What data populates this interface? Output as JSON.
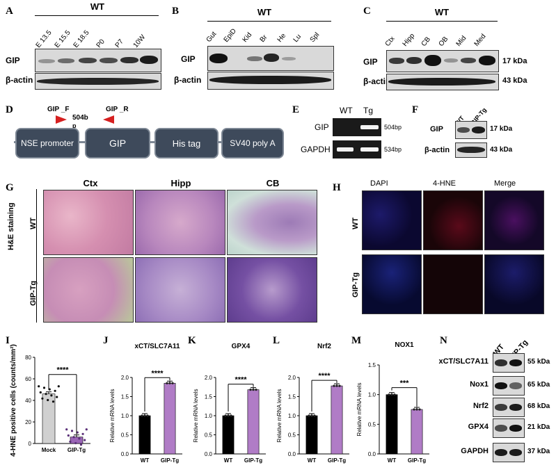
{
  "panel_labels": {
    "A": "A",
    "B": "B",
    "C": "C",
    "D": "D",
    "E": "E",
    "F": "F",
    "G": "G",
    "H": "H",
    "I": "I",
    "J": "J",
    "K": "K",
    "L": "L",
    "M": "M",
    "N": "N"
  },
  "wt": "WT",
  "row_gip": "GIP",
  "row_actin": "β-actin",
  "panelA": {
    "lanes": [
      "E 13.5",
      "E 15.5",
      "E 18.5",
      "P0",
      "P7",
      "10W"
    ]
  },
  "panelB": {
    "lanes": [
      "Gut",
      "EpiD",
      "Kid",
      "Br",
      "He",
      "Lu",
      "Spl"
    ]
  },
  "panelC": {
    "lanes": [
      "Ctx",
      "Hipp",
      "CB",
      "OB",
      "Mid",
      "Med"
    ],
    "kda_gip": "17 kDa",
    "kda_actin": "43 kDa"
  },
  "panelD": {
    "gip_f": "GIP _F",
    "gip_r": "GIP _R",
    "size": "504b",
    "size_p": "p",
    "boxes": [
      "NSE promoter",
      "GIP",
      "His tag",
      "SV40 poly A"
    ]
  },
  "panelE": {
    "col_wt": "WT",
    "col_tg": "Tg",
    "row_gip": "GIP",
    "row_gapdh": "GAPDH",
    "size_gip": "504bp",
    "size_gapdh": "534bp"
  },
  "panelF": {
    "col_wt": "WT",
    "col_tg": "GIP-Tg",
    "row_gip": "GIP",
    "row_actin": "β-actin",
    "kda_gip": "17 kDa",
    "kda_actin": "43 kDa"
  },
  "panelG": {
    "cols": [
      "Ctx",
      "Hipp",
      "CB"
    ],
    "rows": [
      "WT",
      "GIP-Tg"
    ],
    "side": "H&E staining"
  },
  "panelH": {
    "cols": [
      "DAPI",
      "4-HNE",
      "Merge"
    ],
    "rows": [
      "WT",
      "GIP-Tg"
    ]
  },
  "panelN": {
    "col_wt": "WT",
    "col_tg": "GIP-Tg",
    "rows": [
      {
        "name": "xCT/SLC7A11",
        "kda": "55 kDa"
      },
      {
        "name": "Nox1",
        "kda": "65 kDa"
      },
      {
        "name": "Nrf2",
        "kda": "68 kDa"
      },
      {
        "name": "GPX4",
        "kda": "21 kDa"
      },
      {
        "name": "GAPDH",
        "kda": "37 kDa"
      }
    ]
  },
  "colors": {
    "black_bar": "#000000",
    "purple_bar": "#b07cc6",
    "mock_bar": "#d0d0d0",
    "tg_bar": "#9b66b7"
  },
  "chart_data": [
    {
      "id": "I",
      "type": "bar",
      "ylabel": "4-HNE positive cells (counts/mm²)",
      "categories": [
        "Mock",
        "GIP-Tg"
      ],
      "values": [
        46,
        6
      ],
      "ylim": [
        0,
        80
      ],
      "yticks": [
        0,
        20,
        40,
        60,
        80
      ],
      "significance": "****"
    },
    {
      "id": "J",
      "type": "bar",
      "title": "xCT/SLC7A11",
      "ylabel": "Relative mRNA levels",
      "categories": [
        "WT",
        "GIP-Tg"
      ],
      "values": [
        1.0,
        1.85
      ],
      "ylim": [
        0,
        2.0
      ],
      "yticks": [
        0.0,
        0.5,
        1.0,
        1.5,
        2.0
      ],
      "significance": "****"
    },
    {
      "id": "K",
      "type": "bar",
      "title": "GPX4",
      "ylabel": "Relative mRNA levels",
      "categories": [
        "WT",
        "GIP-Tg"
      ],
      "values": [
        1.0,
        1.68
      ],
      "ylim": [
        0,
        2.0
      ],
      "yticks": [
        0.0,
        0.5,
        1.0,
        1.5,
        2.0
      ],
      "significance": "****"
    },
    {
      "id": "L",
      "type": "bar",
      "title": "Nrf2",
      "ylabel": "Relative mRNA levels",
      "categories": [
        "WT",
        "GIP-Tg"
      ],
      "values": [
        1.0,
        1.78
      ],
      "ylim": [
        0,
        2.0
      ],
      "yticks": [
        0.0,
        0.5,
        1.0,
        1.5,
        2.0
      ],
      "significance": "****"
    },
    {
      "id": "M",
      "type": "bar",
      "title": "NOX1",
      "ylabel": "Relative mRNA levels",
      "categories": [
        "WT",
        "GIP-Tg"
      ],
      "values": [
        1.0,
        0.75
      ],
      "ylim": [
        0,
        1.5
      ],
      "yticks": [
        0.0,
        0.5,
        1.0,
        1.5
      ],
      "significance": "***"
    }
  ]
}
